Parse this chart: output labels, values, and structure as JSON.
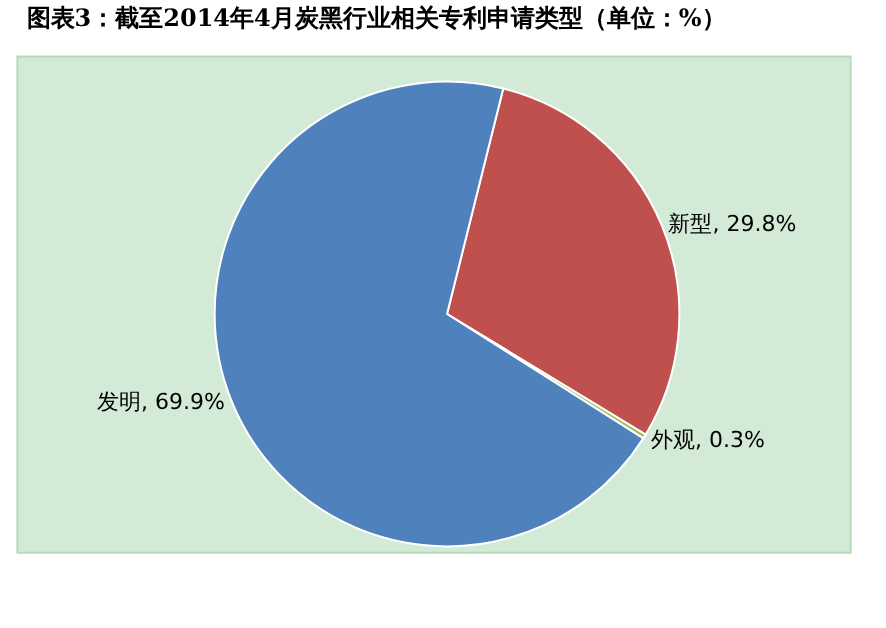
{
  "chart_data": {
    "type": "pie",
    "title": "图表3：截至2014年4月炭黑行业相关专利申请类型（单位：%）",
    "categories": [
      "新型",
      "外观",
      "发明"
    ],
    "values": [
      29.8,
      0.3,
      69.9
    ],
    "value_labels": [
      "29.8%",
      "0.3%",
      "69.9%"
    ],
    "colors": [
      "#c0504d",
      "#9bbb59",
      "#4f81bd"
    ],
    "legend": false
  }
}
